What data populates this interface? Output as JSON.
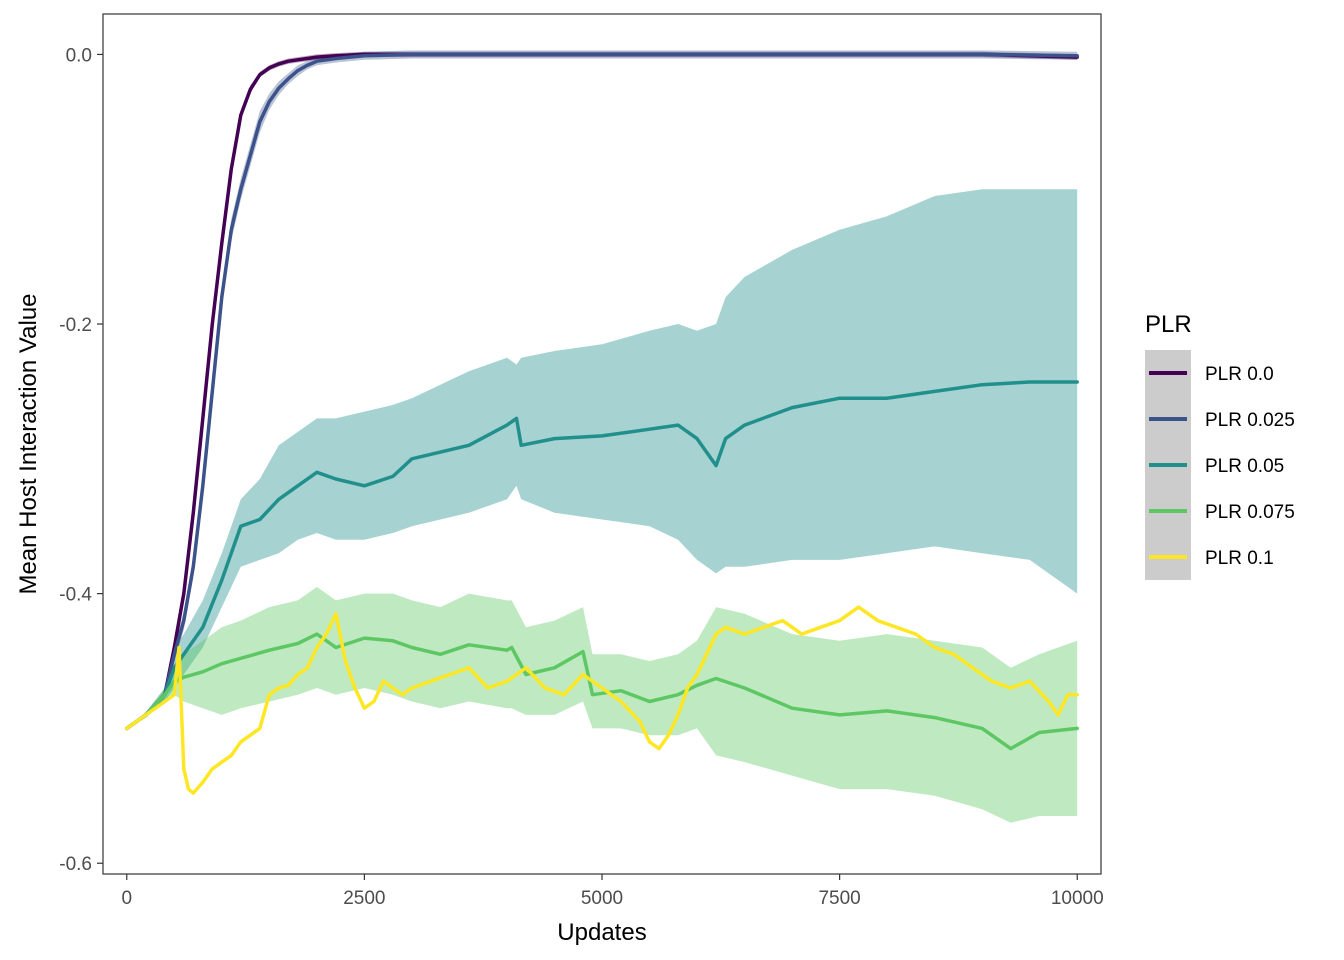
{
  "chart_data": {
    "type": "line",
    "xlabel": "Updates",
    "ylabel": "Mean Host Interaction Value",
    "xlim": [
      -250,
      10250
    ],
    "ylim": [
      -0.608,
      0.03
    ],
    "x_ticks": [
      0,
      2500,
      5000,
      7500,
      10000
    ],
    "x_tick_labels": [
      "0",
      "2500",
      "5000",
      "7500",
      "10000"
    ],
    "y_ticks": [
      0.0,
      -0.2,
      -0.4,
      -0.6
    ],
    "y_tick_labels": [
      "0.0",
      "-0.2",
      "-0.4",
      "-0.6"
    ],
    "grid": false,
    "legend": {
      "title": "PLR",
      "position": "right",
      "entries": [
        "PLR 0.0",
        "PLR 0.025",
        "PLR 0.05",
        "PLR 0.075",
        "PLR 0.1"
      ]
    },
    "series": [
      {
        "name": "PLR 0.0",
        "color": "#440154",
        "band_opacity": 0.35,
        "x": [
          0,
          200,
          400,
          500,
          600,
          700,
          800,
          900,
          1000,
          1100,
          1200,
          1300,
          1400,
          1500,
          1600,
          1700,
          1800,
          1900,
          2000,
          2200,
          2500,
          3000,
          4000,
          5000,
          6000,
          7000,
          8000,
          9000,
          10000
        ],
        "y": [
          -0.5,
          -0.49,
          -0.475,
          -0.44,
          -0.4,
          -0.34,
          -0.27,
          -0.2,
          -0.14,
          -0.085,
          -0.045,
          -0.026,
          -0.015,
          -0.01,
          -0.007,
          -0.005,
          -0.004,
          -0.003,
          -0.002,
          -0.001,
          0,
          0,
          0,
          0,
          0,
          0,
          0,
          0,
          -0.002
        ],
        "lower": [
          -0.5,
          -0.49,
          -0.476,
          -0.442,
          -0.403,
          -0.343,
          -0.273,
          -0.203,
          -0.143,
          -0.088,
          -0.048,
          -0.029,
          -0.017,
          -0.012,
          -0.009,
          -0.007,
          -0.006,
          -0.005,
          -0.004,
          -0.003,
          -0.002,
          -0.002,
          -0.002,
          -0.002,
          -0.002,
          -0.002,
          -0.002,
          -0.002,
          -0.004
        ],
        "upper": [
          -0.5,
          -0.49,
          -0.474,
          -0.438,
          -0.397,
          -0.337,
          -0.267,
          -0.197,
          -0.137,
          -0.082,
          -0.042,
          -0.023,
          -0.013,
          -0.008,
          -0.005,
          -0.003,
          -0.002,
          -0.001,
          0,
          0.001,
          0.002,
          0.002,
          0.002,
          0.002,
          0.002,
          0.002,
          0.002,
          0.002,
          0
        ]
      },
      {
        "name": "PLR 0.025",
        "color": "#3b528b",
        "band_opacity": 0.35,
        "x": [
          0,
          200,
          400,
          500,
          600,
          700,
          800,
          900,
          1000,
          1100,
          1200,
          1300,
          1400,
          1500,
          1600,
          1700,
          1800,
          1900,
          2000,
          2200,
          2500,
          3000,
          4000,
          5000,
          6000,
          7000,
          8000,
          9000,
          10000
        ],
        "y": [
          -0.5,
          -0.49,
          -0.475,
          -0.445,
          -0.42,
          -0.38,
          -0.32,
          -0.25,
          -0.18,
          -0.13,
          -0.1,
          -0.075,
          -0.05,
          -0.035,
          -0.025,
          -0.018,
          -0.012,
          -0.008,
          -0.005,
          -0.003,
          -0.001,
          0,
          0,
          0,
          0,
          0,
          0,
          0,
          -0.001
        ],
        "lower": [
          -0.5,
          -0.491,
          -0.478,
          -0.45,
          -0.427,
          -0.388,
          -0.328,
          -0.258,
          -0.188,
          -0.138,
          -0.108,
          -0.083,
          -0.058,
          -0.041,
          -0.03,
          -0.022,
          -0.016,
          -0.011,
          -0.008,
          -0.006,
          -0.004,
          -0.003,
          -0.003,
          -0.003,
          -0.003,
          -0.003,
          -0.003,
          -0.003,
          -0.004
        ],
        "upper": [
          -0.5,
          -0.489,
          -0.472,
          -0.44,
          -0.413,
          -0.372,
          -0.312,
          -0.242,
          -0.172,
          -0.122,
          -0.092,
          -0.067,
          -0.042,
          -0.029,
          -0.02,
          -0.014,
          -0.008,
          -0.005,
          -0.002,
          0,
          0.002,
          0.003,
          0.003,
          0.003,
          0.003,
          0.003,
          0.003,
          0.003,
          0.002
        ]
      },
      {
        "name": "PLR 0.05",
        "color": "#21908c",
        "band_opacity": 0.4,
        "x": [
          0,
          200,
          400,
          500,
          600,
          800,
          1000,
          1200,
          1400,
          1600,
          1800,
          2000,
          2200,
          2500,
          2800,
          3000,
          3300,
          3600,
          4000,
          4100,
          4150,
          4500,
          5000,
          5500,
          5800,
          6000,
          6200,
          6300,
          6500,
          7000,
          7500,
          8000,
          8500,
          9000,
          9500,
          10000
        ],
        "y": [
          -0.5,
          -0.49,
          -0.475,
          -0.455,
          -0.445,
          -0.425,
          -0.39,
          -0.35,
          -0.345,
          -0.33,
          -0.32,
          -0.31,
          -0.315,
          -0.32,
          -0.313,
          -0.3,
          -0.295,
          -0.29,
          -0.275,
          -0.27,
          -0.29,
          -0.285,
          -0.283,
          -0.278,
          -0.275,
          -0.285,
          -0.305,
          -0.285,
          -0.275,
          -0.262,
          -0.255,
          -0.255,
          -0.25,
          -0.245,
          -0.243,
          -0.243
        ],
        "lower": [
          -0.5,
          -0.492,
          -0.48,
          -0.47,
          -0.46,
          -0.44,
          -0.41,
          -0.38,
          -0.375,
          -0.37,
          -0.36,
          -0.355,
          -0.36,
          -0.36,
          -0.355,
          -0.35,
          -0.345,
          -0.34,
          -0.33,
          -0.32,
          -0.33,
          -0.34,
          -0.345,
          -0.35,
          -0.36,
          -0.375,
          -0.385,
          -0.38,
          -0.38,
          -0.375,
          -0.375,
          -0.37,
          -0.365,
          -0.37,
          -0.375,
          -0.4
        ],
        "upper": [
          -0.5,
          -0.488,
          -0.47,
          -0.44,
          -0.43,
          -0.405,
          -0.37,
          -0.33,
          -0.315,
          -0.29,
          -0.28,
          -0.27,
          -0.27,
          -0.265,
          -0.26,
          -0.255,
          -0.245,
          -0.235,
          -0.225,
          -0.23,
          -0.225,
          -0.22,
          -0.215,
          -0.205,
          -0.2,
          -0.205,
          -0.2,
          -0.18,
          -0.165,
          -0.145,
          -0.13,
          -0.12,
          -0.105,
          -0.1,
          -0.1,
          -0.1
        ]
      },
      {
        "name": "PLR 0.075",
        "color": "#5dc863",
        "band_opacity": 0.4,
        "x": [
          0,
          200,
          400,
          500,
          600,
          800,
          1000,
          1200,
          1500,
          1800,
          2000,
          2200,
          2500,
          2800,
          3000,
          3300,
          3600,
          4000,
          4050,
          4200,
          4500,
          4800,
          4900,
          5200,
          5500,
          5800,
          6000,
          6200,
          6500,
          7000,
          7500,
          8000,
          8500,
          9000,
          9300,
          9600,
          10000
        ],
        "y": [
          -0.5,
          -0.49,
          -0.475,
          -0.465,
          -0.462,
          -0.458,
          -0.452,
          -0.448,
          -0.442,
          -0.437,
          -0.43,
          -0.44,
          -0.433,
          -0.435,
          -0.44,
          -0.445,
          -0.438,
          -0.442,
          -0.44,
          -0.46,
          -0.455,
          -0.443,
          -0.475,
          -0.472,
          -0.48,
          -0.475,
          -0.468,
          -0.463,
          -0.47,
          -0.485,
          -0.49,
          -0.487,
          -0.492,
          -0.5,
          -0.515,
          -0.503,
          -0.5
        ],
        "lower": [
          -0.5,
          -0.492,
          -0.48,
          -0.475,
          -0.48,
          -0.485,
          -0.49,
          -0.485,
          -0.48,
          -0.475,
          -0.47,
          -0.475,
          -0.47,
          -0.475,
          -0.48,
          -0.485,
          -0.48,
          -0.485,
          -0.485,
          -0.49,
          -0.49,
          -0.48,
          -0.5,
          -0.5,
          -0.505,
          -0.505,
          -0.5,
          -0.52,
          -0.525,
          -0.535,
          -0.545,
          -0.545,
          -0.55,
          -0.56,
          -0.57,
          -0.565,
          -0.565
        ],
        "upper": [
          -0.5,
          -0.488,
          -0.47,
          -0.455,
          -0.445,
          -0.435,
          -0.425,
          -0.42,
          -0.41,
          -0.405,
          -0.395,
          -0.405,
          -0.4,
          -0.4,
          -0.405,
          -0.41,
          -0.4,
          -0.405,
          -0.405,
          -0.425,
          -0.42,
          -0.41,
          -0.445,
          -0.445,
          -0.45,
          -0.445,
          -0.435,
          -0.41,
          -0.415,
          -0.43,
          -0.435,
          -0.43,
          -0.435,
          -0.44,
          -0.455,
          -0.445,
          -0.435
        ]
      },
      {
        "name": "PLR 0.1",
        "color": "#fde725",
        "band_opacity": 0.3,
        "x": [
          0,
          200,
          400,
          500,
          550,
          600,
          650,
          700,
          800,
          900,
          1000,
          1100,
          1200,
          1300,
          1400,
          1500,
          1600,
          1700,
          1800,
          1900,
          2000,
          2100,
          2200,
          2300,
          2400,
          2500,
          2600,
          2700,
          2800,
          2900,
          3000,
          3200,
          3400,
          3600,
          3800,
          4000,
          4200,
          4400,
          4600,
          4800,
          5000,
          5200,
          5400,
          5500,
          5600,
          5700,
          5800,
          5900,
          6000,
          6100,
          6200,
          6300,
          6500,
          6700,
          6900,
          7100,
          7300,
          7500,
          7700,
          7900,
          8100,
          8300,
          8500,
          8700,
          8900,
          9100,
          9300,
          9500,
          9700,
          9800,
          9900,
          10000
        ],
        "y": [
          -0.5,
          -0.49,
          -0.48,
          -0.475,
          -0.44,
          -0.53,
          -0.545,
          -0.548,
          -0.54,
          -0.53,
          -0.525,
          -0.52,
          -0.51,
          -0.505,
          -0.5,
          -0.475,
          -0.47,
          -0.468,
          -0.46,
          -0.455,
          -0.44,
          -0.43,
          -0.415,
          -0.45,
          -0.47,
          -0.485,
          -0.48,
          -0.465,
          -0.47,
          -0.475,
          -0.47,
          -0.465,
          -0.46,
          -0.455,
          -0.47,
          -0.465,
          -0.455,
          -0.47,
          -0.475,
          -0.46,
          -0.47,
          -0.48,
          -0.495,
          -0.51,
          -0.515,
          -0.505,
          -0.49,
          -0.47,
          -0.46,
          -0.445,
          -0.43,
          -0.425,
          -0.43,
          -0.425,
          -0.42,
          -0.43,
          -0.425,
          -0.42,
          -0.41,
          -0.42,
          -0.425,
          -0.43,
          -0.44,
          -0.445,
          -0.455,
          -0.465,
          -0.47,
          -0.465,
          -0.48,
          -0.49,
          -0.475,
          -0.475
        ],
        "lower": [],
        "upper": []
      }
    ]
  }
}
